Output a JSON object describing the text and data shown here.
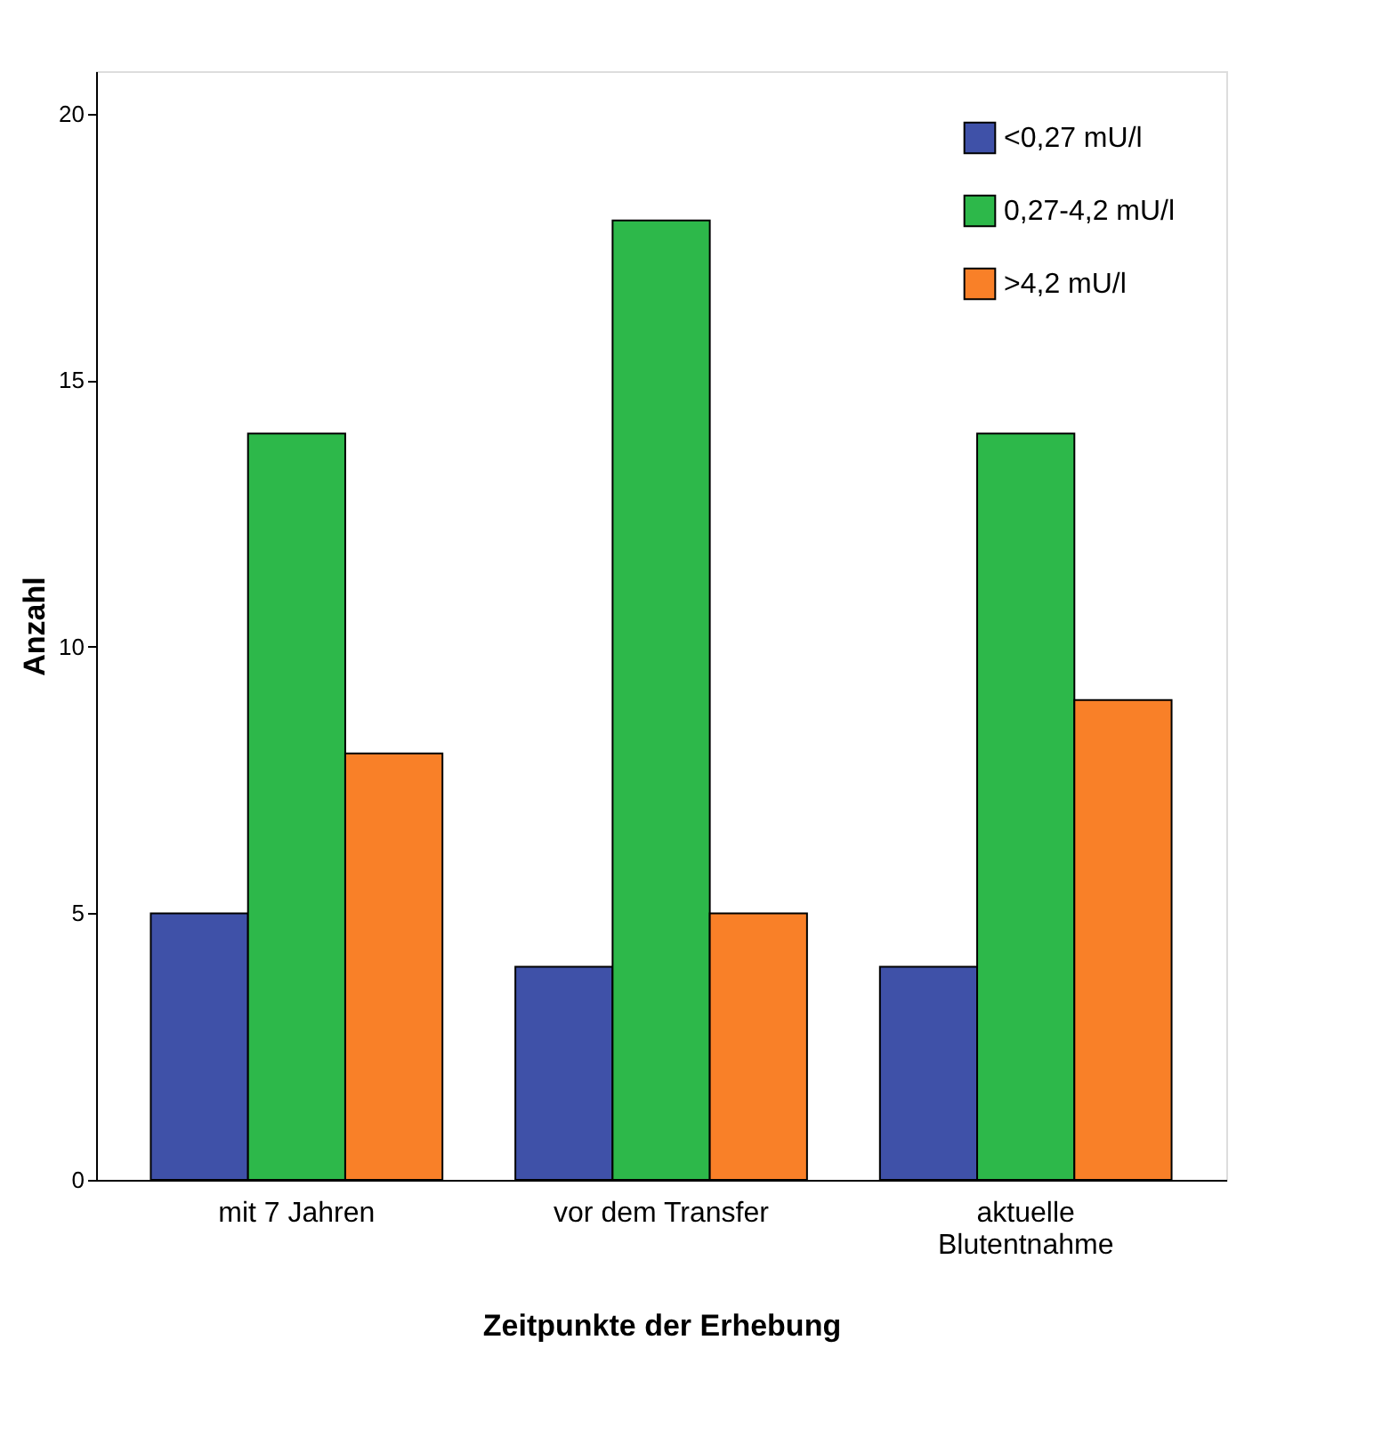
{
  "chart_data": {
    "type": "bar",
    "xlabel": "Zeitpunkte der Erhebung",
    "ylabel": "Anzahl",
    "categories": [
      "mit 7 Jahren",
      "vor dem Transfer",
      "aktuelle Blutentnahme"
    ],
    "series": [
      {
        "name": "<0,27 mU/l",
        "color": "#3f51a8",
        "values": [
          5,
          4,
          4
        ]
      },
      {
        "name": "0,27-4,2 mU/l",
        "color": "#2db84a",
        "values": [
          14,
          18,
          14
        ]
      },
      {
        "name": ">4,2 mU/l",
        "color": "#f98028",
        "values": [
          8,
          5,
          9
        ]
      }
    ],
    "ylim": [
      0,
      20.8
    ],
    "yticks": [
      0,
      5,
      10,
      15,
      20
    ],
    "grid": false,
    "legend": "top right"
  }
}
